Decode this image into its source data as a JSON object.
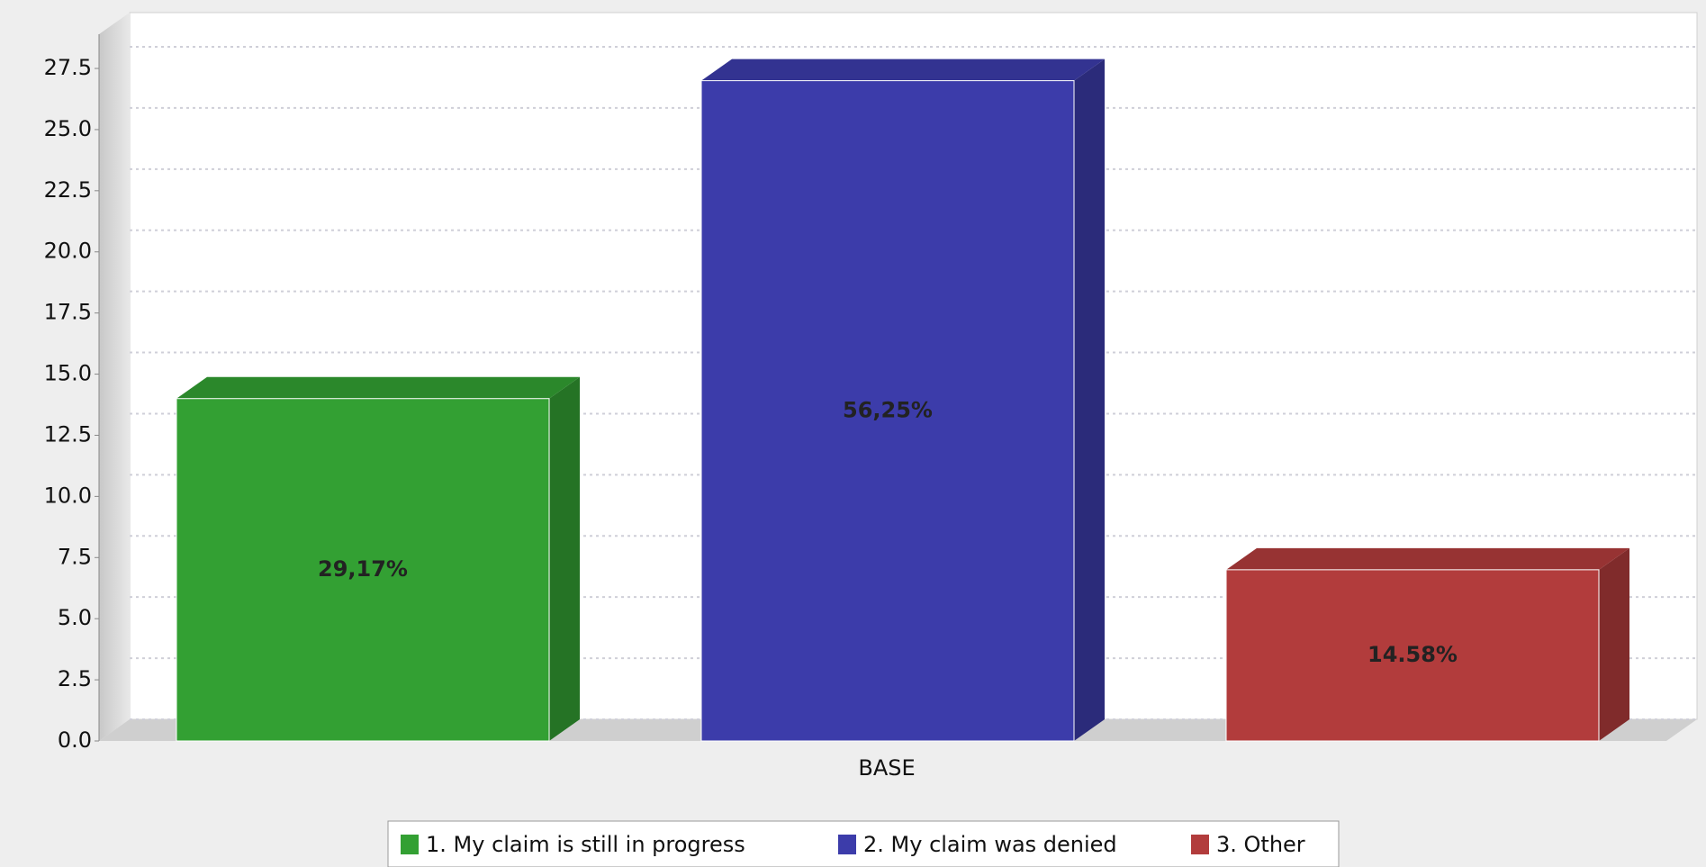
{
  "chart_data": {
    "type": "bar3d",
    "categories": [
      "BASE"
    ],
    "series": [
      {
        "name": "1. My claim is still in progress",
        "color": "#33a033",
        "values": [
          14
        ],
        "value_labels": [
          "29,17%"
        ]
      },
      {
        "name": "2. My claim was denied",
        "color": "#3c3caa",
        "values": [
          27
        ],
        "value_labels": [
          "56,25%"
        ]
      },
      {
        "name": "3. Other",
        "color": "#b23c3c",
        "values": [
          7
        ],
        "value_labels": [
          "14.58%"
        ]
      }
    ],
    "ylim": [
      0,
      28.9
    ],
    "yticks": [
      {
        "value": 0,
        "label": "0.0"
      },
      2.5,
      {
        "value": 5,
        "label": "5.0"
      },
      7.5,
      {
        "value": 10,
        "label": "10.0"
      },
      12.5,
      {
        "value": 15,
        "label": "15.0"
      },
      17.5,
      {
        "value": 20,
        "label": "20.0"
      },
      22.5,
      {
        "value": 25,
        "label": "25.0"
      },
      27.5
    ],
    "grid": true,
    "legend": "bottom"
  }
}
